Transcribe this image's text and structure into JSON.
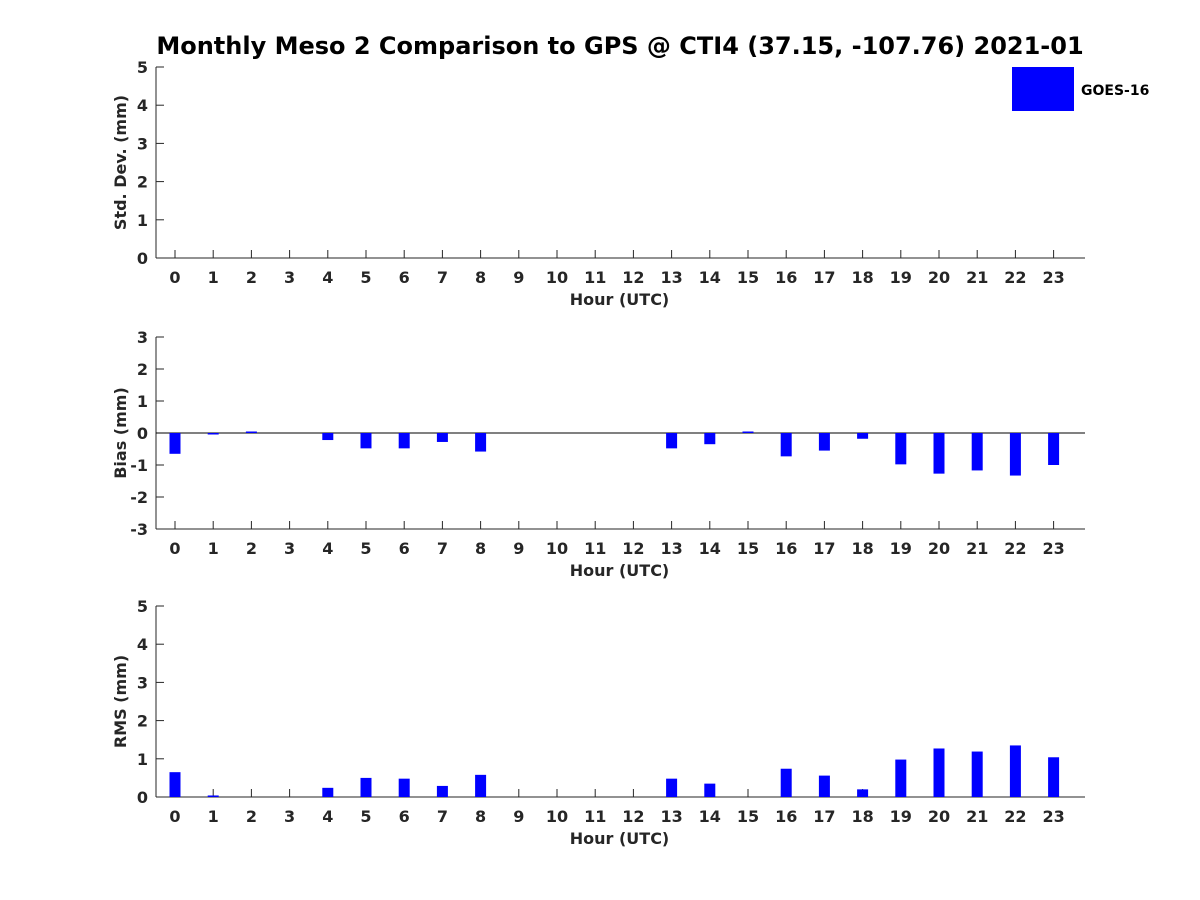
{
  "figure": {
    "title": "Monthly Meso 2 Comparison to GPS @ CTI4 (37.15, -107.76) 2021-01",
    "legend": {
      "label": "GOES-16",
      "color": "#0000ff",
      "placement": "top-right"
    }
  },
  "chart_data": [
    {
      "type": "bar",
      "xlabel": "Hour (UTC)",
      "ylabel": "Std. Dev. (mm)",
      "ylim": [
        0,
        5
      ],
      "yticks": [
        0,
        1,
        2,
        3,
        4,
        5
      ],
      "categories": [
        "0",
        "1",
        "2",
        "3",
        "4",
        "5",
        "6",
        "7",
        "8",
        "9",
        "10",
        "11",
        "12",
        "13",
        "14",
        "15",
        "16",
        "17",
        "18",
        "19",
        "20",
        "21",
        "22",
        "23"
      ],
      "series": [
        {
          "name": "GOES-16",
          "values": [
            null,
            null,
            null,
            null,
            null,
            null,
            null,
            null,
            null,
            null,
            null,
            null,
            null,
            null,
            null,
            null,
            null,
            null,
            null,
            null,
            null,
            null,
            null,
            null
          ]
        }
      ]
    },
    {
      "type": "bar",
      "xlabel": "Hour (UTC)",
      "ylabel": "Bias (mm)",
      "ylim": [
        -3,
        3
      ],
      "yticks": [
        -3,
        -2,
        -1,
        0,
        1,
        2,
        3
      ],
      "categories": [
        "0",
        "1",
        "2",
        "3",
        "4",
        "5",
        "6",
        "7",
        "8",
        "9",
        "10",
        "11",
        "12",
        "13",
        "14",
        "15",
        "16",
        "17",
        "18",
        "19",
        "20",
        "21",
        "22",
        "23"
      ],
      "series": [
        {
          "name": "GOES-16",
          "values": [
            -0.65,
            -0.02,
            0.03,
            null,
            -0.22,
            -0.48,
            -0.48,
            -0.28,
            -0.58,
            null,
            null,
            null,
            null,
            -0.48,
            -0.35,
            0.02,
            -0.73,
            -0.55,
            -0.18,
            -0.98,
            -1.27,
            -1.17,
            -1.33,
            -1.0
          ]
        }
      ]
    },
    {
      "type": "bar",
      "xlabel": "Hour (UTC)",
      "ylabel": "RMS (mm)",
      "ylim": [
        0,
        5
      ],
      "yticks": [
        0,
        1,
        2,
        3,
        4,
        5
      ],
      "categories": [
        "0",
        "1",
        "2",
        "3",
        "4",
        "5",
        "6",
        "7",
        "8",
        "9",
        "10",
        "11",
        "12",
        "13",
        "14",
        "15",
        "16",
        "17",
        "18",
        "19",
        "20",
        "21",
        "22",
        "23"
      ],
      "series": [
        {
          "name": "GOES-16",
          "values": [
            0.65,
            0.04,
            null,
            null,
            0.24,
            0.5,
            0.48,
            0.29,
            0.58,
            null,
            null,
            null,
            null,
            0.48,
            0.35,
            null,
            0.74,
            0.56,
            0.2,
            0.98,
            1.27,
            1.19,
            1.35,
            1.04
          ]
        }
      ]
    }
  ]
}
